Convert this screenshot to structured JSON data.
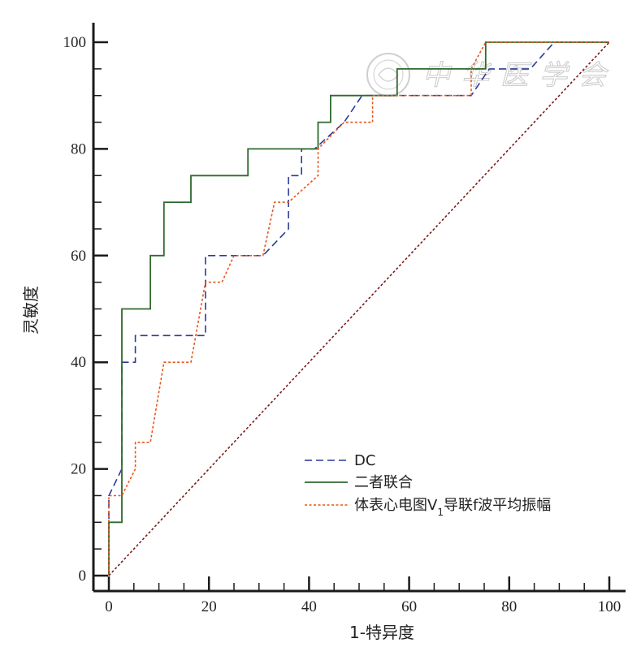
{
  "chart_data": {
    "type": "line",
    "title": "",
    "xlabel": "1-特异度",
    "ylabel": "灵敏度",
    "xlim": [
      0,
      100
    ],
    "ylim": [
      0,
      100
    ],
    "x_ticks": [
      0,
      20,
      40,
      60,
      80,
      100
    ],
    "y_ticks": [
      0,
      20,
      40,
      60,
      80,
      100
    ],
    "grid": false,
    "legend_position": "bottom-right",
    "watermark": "中华医学会",
    "series": [
      {
        "name": "DC",
        "color": "#2b3a9a",
        "dash": "dashed",
        "points": [
          [
            0,
            0
          ],
          [
            0,
            15
          ],
          [
            2.6,
            20
          ],
          [
            2.6,
            40
          ],
          [
            5.3,
            40
          ],
          [
            5.3,
            45
          ],
          [
            19.3,
            45
          ],
          [
            19.3,
            60
          ],
          [
            30.8,
            60
          ],
          [
            35.9,
            65
          ],
          [
            35.9,
            75
          ],
          [
            38.5,
            75
          ],
          [
            38.5,
            80
          ],
          [
            41.1,
            80
          ],
          [
            47,
            85
          ],
          [
            50.6,
            90
          ],
          [
            56.4,
            90
          ],
          [
            57.7,
            90
          ],
          [
            72.4,
            90
          ],
          [
            76,
            95
          ],
          [
            80.3,
            95
          ],
          [
            84.2,
            95
          ],
          [
            89,
            100
          ],
          [
            100,
            100
          ]
        ]
      },
      {
        "name": "二者联合",
        "color": "#2e6a2e",
        "dash": "solid",
        "points": [
          [
            0,
            0
          ],
          [
            0,
            10
          ],
          [
            2.6,
            10
          ],
          [
            2.6,
            50
          ],
          [
            8.3,
            50
          ],
          [
            8.3,
            60
          ],
          [
            11,
            60
          ],
          [
            11,
            70
          ],
          [
            16.4,
            70
          ],
          [
            16.4,
            75
          ],
          [
            27.8,
            75
          ],
          [
            27.8,
            80
          ],
          [
            41.8,
            80
          ],
          [
            41.8,
            85
          ],
          [
            44.3,
            85
          ],
          [
            44.3,
            90
          ],
          [
            57.6,
            90
          ],
          [
            57.6,
            95
          ],
          [
            75.3,
            95
          ],
          [
            75.3,
            100
          ],
          [
            100,
            100
          ]
        ]
      },
      {
        "name": "体表心电图V1导联f波平均振幅",
        "color": "#e8561c",
        "dash": "dotted",
        "points": [
          [
            0,
            0
          ],
          [
            0,
            15
          ],
          [
            2.6,
            15
          ],
          [
            5.3,
            20
          ],
          [
            5.3,
            25
          ],
          [
            8.3,
            25
          ],
          [
            11,
            40
          ],
          [
            16.4,
            40
          ],
          [
            19.3,
            55
          ],
          [
            22.6,
            55
          ],
          [
            25,
            60
          ],
          [
            30.8,
            60
          ],
          [
            33.1,
            70
          ],
          [
            35.9,
            70
          ],
          [
            41.8,
            75
          ],
          [
            41.8,
            80
          ],
          [
            47,
            85
          ],
          [
            52.7,
            85
          ],
          [
            52.7,
            90
          ],
          [
            72.4,
            90
          ],
          [
            72.4,
            95
          ],
          [
            75.3,
            100
          ],
          [
            100,
            100
          ]
        ]
      },
      {
        "name": "",
        "color": "#7a1a1a",
        "dash": "dotted",
        "points": [
          [
            0,
            0
          ],
          [
            100,
            100
          ]
        ]
      }
    ],
    "legend_entries": [
      {
        "main": "DC",
        "sub": "",
        "tail": ""
      },
      {
        "main": "二者联合",
        "sub": "",
        "tail": ""
      },
      {
        "main": "体表心电图V",
        "sub": "1",
        "tail": "导联f波平均振幅"
      }
    ]
  }
}
